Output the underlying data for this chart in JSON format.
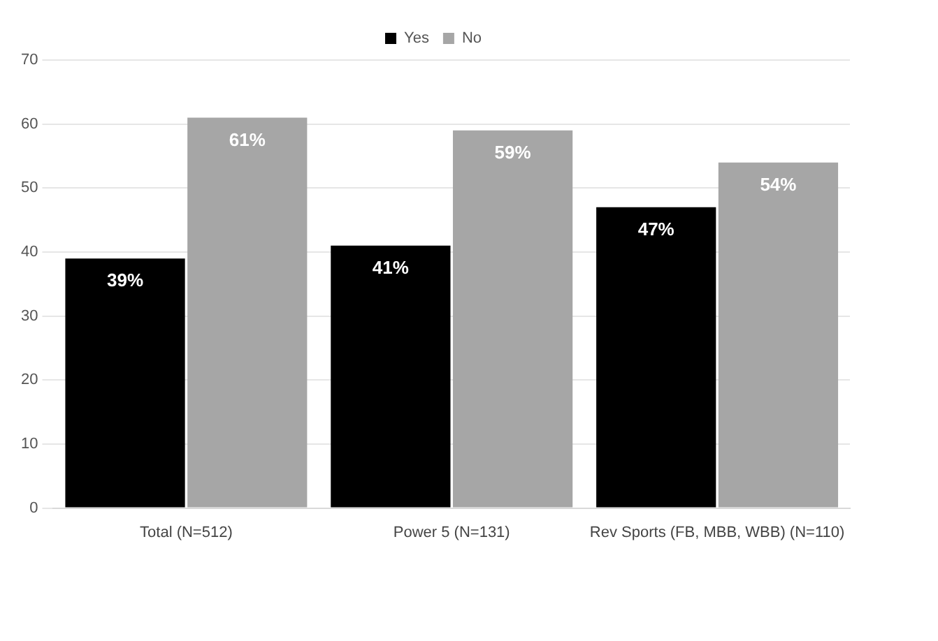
{
  "chart_data": {
    "type": "bar",
    "categories": [
      "Total (N=512)",
      "Power 5 (N=131)",
      "Rev Sports (FB, MBB, WBB) (N=110)"
    ],
    "series": [
      {
        "name": "Yes",
        "color": "#000000",
        "values": [
          39,
          41,
          47
        ],
        "value_labels": [
          "39%",
          "41%",
          "47%"
        ]
      },
      {
        "name": "No",
        "color": "#a6a6a6",
        "values": [
          61,
          59,
          54
        ],
        "value_labels": [
          "61%",
          "59%",
          "54%"
        ]
      }
    ],
    "ylim": [
      0,
      70
    ],
    "yticks": [
      0,
      10,
      20,
      30,
      40,
      50,
      60,
      70
    ],
    "grid": "y",
    "legend": "top"
  }
}
